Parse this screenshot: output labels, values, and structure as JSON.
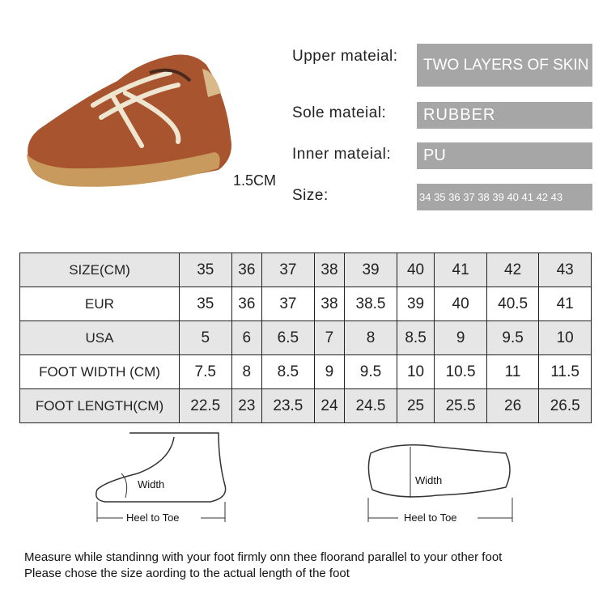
{
  "product": {
    "height_label": "1.5CM"
  },
  "specs": [
    {
      "label": "Upper mateial:",
      "value": "TWO LAYERS OF SKIN"
    },
    {
      "label": "Sole mateial:",
      "value": "RUBBER"
    },
    {
      "label": "Inner mateial:",
      "value": "PU"
    },
    {
      "label": "Size:",
      "value": "34 35 36 37 38 39 40 41 42 43"
    }
  ],
  "size_table": {
    "rows": [
      {
        "header": "SIZE(CM)",
        "cells": [
          "35",
          "36",
          "37",
          "38",
          "39",
          "40",
          "41",
          "42",
          "43"
        ]
      },
      {
        "header": "EUR",
        "cells": [
          "35",
          "36",
          "37",
          "38",
          "38.5",
          "39",
          "40",
          "40.5",
          "41"
        ]
      },
      {
        "header": "USA",
        "cells": [
          "5",
          "6",
          "6.5",
          "7",
          "8",
          "8.5",
          "9",
          "9.5",
          "10"
        ]
      },
      {
        "header": "FOOT WIDTH (CM)",
        "cells": [
          "7.5",
          "8",
          "8.5",
          "9",
          "9.5",
          "10",
          "10.5",
          "11",
          "11.5"
        ]
      },
      {
        "header": "FOOT LENGTH(CM)",
        "cells": [
          "22.5",
          "23",
          "23.5",
          "24",
          "24.5",
          "25",
          "25.5",
          "26",
          "26.5"
        ]
      }
    ]
  },
  "diagrams": {
    "side": {
      "width_label": "Width",
      "length_label": "Heel to Toe"
    },
    "top": {
      "width_label": "Width",
      "length_label": "Heel to Toe"
    }
  },
  "notes": [
    "Measure while standinng with your foot firmly onn thee floorand parallel to your other foot",
    "Please chose the size aording to the actual length of the foot"
  ],
  "colors": {
    "shoe": "#a8552f",
    "sole": "#c89a5e",
    "spec_box": "#a6a6a6",
    "row_shade": "#e6e6e6"
  }
}
